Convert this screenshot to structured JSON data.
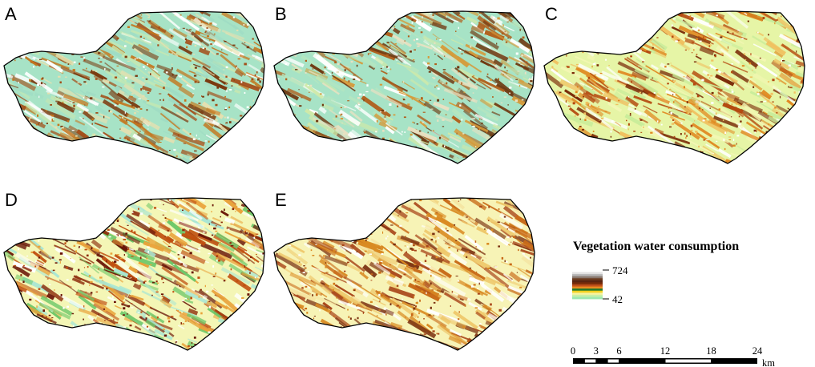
{
  "panels": [
    {
      "letter": "A",
      "palette": [
        "#a7e3c6",
        "#9fdcc4",
        "#c7e8b0",
        "#7a3a10",
        "#a34e18",
        "#c4761e",
        "#e6e0b0",
        "#ffffff"
      ]
    },
    {
      "letter": "B",
      "palette": [
        "#a7e3c6",
        "#b6e6bf",
        "#cfe9a9",
        "#6f3a13",
        "#b0601d",
        "#d59a3a",
        "#ffffff",
        "#e8e1c2"
      ]
    },
    {
      "letter": "C",
      "palette": [
        "#e6f5a6",
        "#f3f7b4",
        "#c8ec9a",
        "#7a2a08",
        "#b44a10",
        "#e08820",
        "#ffffff",
        "#f0c060"
      ]
    },
    {
      "letter": "D",
      "palette": [
        "#f4f6b6",
        "#a9e6d3",
        "#6fc86a",
        "#6a1608",
        "#8c2a0a",
        "#c05010",
        "#ffffff",
        "#e9a23a"
      ]
    },
    {
      "letter": "E",
      "palette": [
        "#f7f3b6",
        "#f5e3a0",
        "#eec76a",
        "#7a3010",
        "#a8461a",
        "#d98a22",
        "#ffffff",
        "#c86a18"
      ]
    }
  ],
  "legend": {
    "title": "Vegetation water consumption",
    "max_label": "724",
    "min_label": "42",
    "colors": [
      "#ffffff",
      "#e2e2e2",
      "#b5b5b5",
      "#8a7a70",
      "#6b3c20",
      "#5a2410",
      "#7a2d0a",
      "#c0501a",
      "#e88a20",
      "#1f7a2a",
      "#f0d020",
      "#f7f3a0",
      "#c8f0a8",
      "#9ee8b0"
    ]
  },
  "scale_bar": {
    "ticks": [
      "0",
      "3",
      "6",
      "12",
      "18",
      "24"
    ],
    "tick_values": [
      0,
      3,
      6,
      12,
      18,
      24
    ],
    "unit": "km"
  }
}
